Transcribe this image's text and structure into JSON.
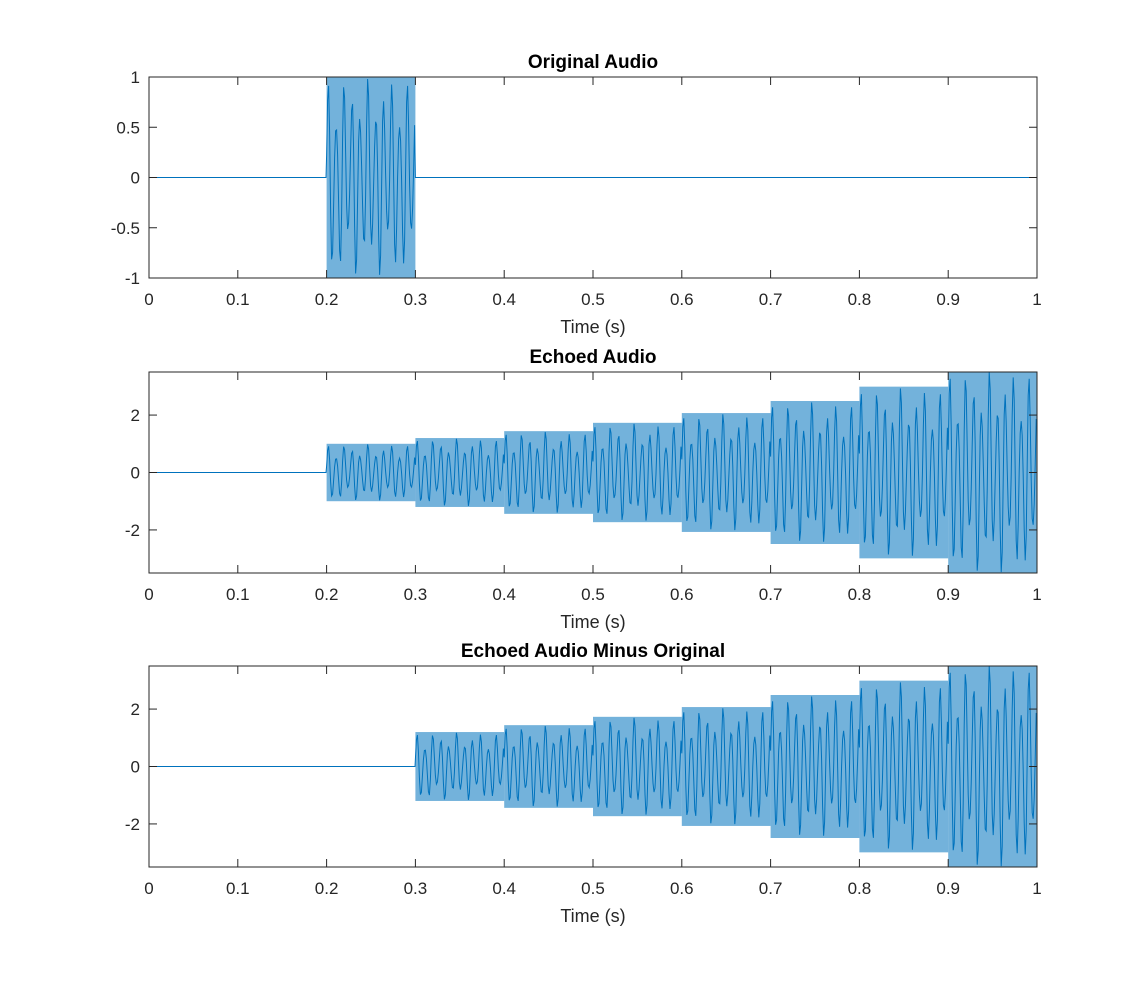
{
  "chart_data": [
    {
      "type": "line",
      "title": "Original Audio",
      "xlabel": "Time (s)",
      "ylabel": "",
      "xlim": [
        0,
        1
      ],
      "ylim": [
        -1,
        1
      ],
      "xticks": [
        "0",
        "0.1",
        "0.2",
        "0.3",
        "0.4",
        "0.5",
        "0.6",
        "0.7",
        "0.8",
        "0.9",
        "1"
      ],
      "yticks": [
        "-1",
        "-0.5",
        "0",
        "0.5",
        "1"
      ],
      "ytick_values": [
        -1,
        -0.5,
        0,
        0.5,
        1
      ],
      "grid": false,
      "series": [
        {
          "color": "#0072bd",
          "signal": "oscillation",
          "segments": [
            {
              "x": [
                0,
                0.2
              ],
              "amplitude": 0
            },
            {
              "x": [
                0.2,
                0.3
              ],
              "amplitude": 1
            },
            {
              "x": [
                0.3,
                1.0
              ],
              "amplitude": 0
            }
          ]
        }
      ]
    },
    {
      "type": "line",
      "title": "Echoed Audio",
      "xlabel": "Time (s)",
      "ylabel": "",
      "xlim": [
        0,
        1
      ],
      "ylim": [
        -3.5,
        3.5
      ],
      "xticks": [
        "0",
        "0.1",
        "0.2",
        "0.3",
        "0.4",
        "0.5",
        "0.6",
        "0.7",
        "0.8",
        "0.9",
        "1"
      ],
      "yticks": [
        "-2",
        "0",
        "2"
      ],
      "ytick_values": [
        -2,
        0,
        2
      ],
      "grid": false,
      "series": [
        {
          "color": "#0072bd",
          "signal": "oscillation",
          "segments": [
            {
              "x": [
                0,
                0.2
              ],
              "amplitude": 0
            },
            {
              "x": [
                0.2,
                0.3
              ],
              "amplitude": 1.0
            },
            {
              "x": [
                0.3,
                0.4
              ],
              "amplitude": 1.2
            },
            {
              "x": [
                0.4,
                0.5
              ],
              "amplitude": 1.44
            },
            {
              "x": [
                0.5,
                0.6
              ],
              "amplitude": 1.73
            },
            {
              "x": [
                0.6,
                0.7
              ],
              "amplitude": 2.07
            },
            {
              "x": [
                0.7,
                0.8
              ],
              "amplitude": 2.49
            },
            {
              "x": [
                0.8,
                0.9
              ],
              "amplitude": 2.99
            },
            {
              "x": [
                0.9,
                1.0
              ],
              "amplitude": 3.58
            }
          ]
        }
      ]
    },
    {
      "type": "line",
      "title": "Echoed Audio Minus Original",
      "xlabel": "Time (s)",
      "ylabel": "",
      "xlim": [
        0,
        1
      ],
      "ylim": [
        -3.5,
        3.5
      ],
      "xticks": [
        "0",
        "0.1",
        "0.2",
        "0.3",
        "0.4",
        "0.5",
        "0.6",
        "0.7",
        "0.8",
        "0.9",
        "1"
      ],
      "yticks": [
        "-2",
        "0",
        "2"
      ],
      "ytick_values": [
        -2,
        0,
        2
      ],
      "grid": false,
      "series": [
        {
          "color": "#0072bd",
          "signal": "oscillation",
          "segments": [
            {
              "x": [
                0,
                0.3
              ],
              "amplitude": 0
            },
            {
              "x": [
                0.3,
                0.4
              ],
              "amplitude": 1.2
            },
            {
              "x": [
                0.4,
                0.5
              ],
              "amplitude": 1.44
            },
            {
              "x": [
                0.5,
                0.6
              ],
              "amplitude": 1.73
            },
            {
              "x": [
                0.6,
                0.7
              ],
              "amplitude": 2.07
            },
            {
              "x": [
                0.7,
                0.8
              ],
              "amplitude": 2.49
            },
            {
              "x": [
                0.8,
                0.9
              ],
              "amplitude": 2.99
            },
            {
              "x": [
                0.9,
                1.0
              ],
              "amplitude": 3.58
            }
          ]
        }
      ]
    }
  ]
}
